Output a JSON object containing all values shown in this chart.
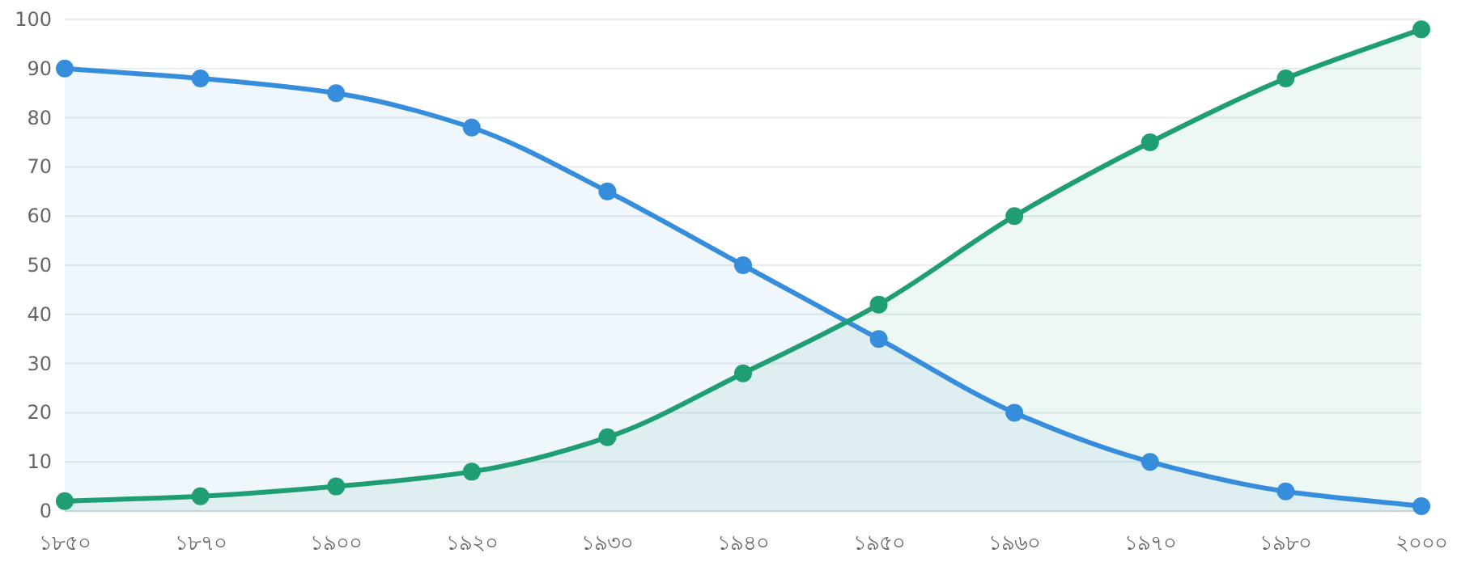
{
  "chart_data": {
    "type": "area",
    "categories": [
      "১৮৫০",
      "১৮৭০",
      "১৯০০",
      "১৯২০",
      "১৯৩০",
      "১৯৪০",
      "১৯৫০",
      "১৯৬০",
      "১৯৭০",
      "১৯৮০",
      "২০০০"
    ],
    "series": [
      {
        "color": "#368ddc",
        "values": [
          90,
          88,
          85,
          78,
          65,
          50,
          35,
          20,
          10,
          4,
          1
        ]
      },
      {
        "color": "#1f9e74",
        "values": [
          2,
          3,
          5,
          8,
          15,
          28,
          42,
          60,
          75,
          88,
          98
        ]
      }
    ],
    "ylim": [
      0,
      100
    ],
    "yticks": [
      0,
      10,
      20,
      30,
      40,
      50,
      60,
      70,
      80,
      90,
      100
    ],
    "grid": "y",
    "marker": "circle",
    "line_style": "solid"
  }
}
